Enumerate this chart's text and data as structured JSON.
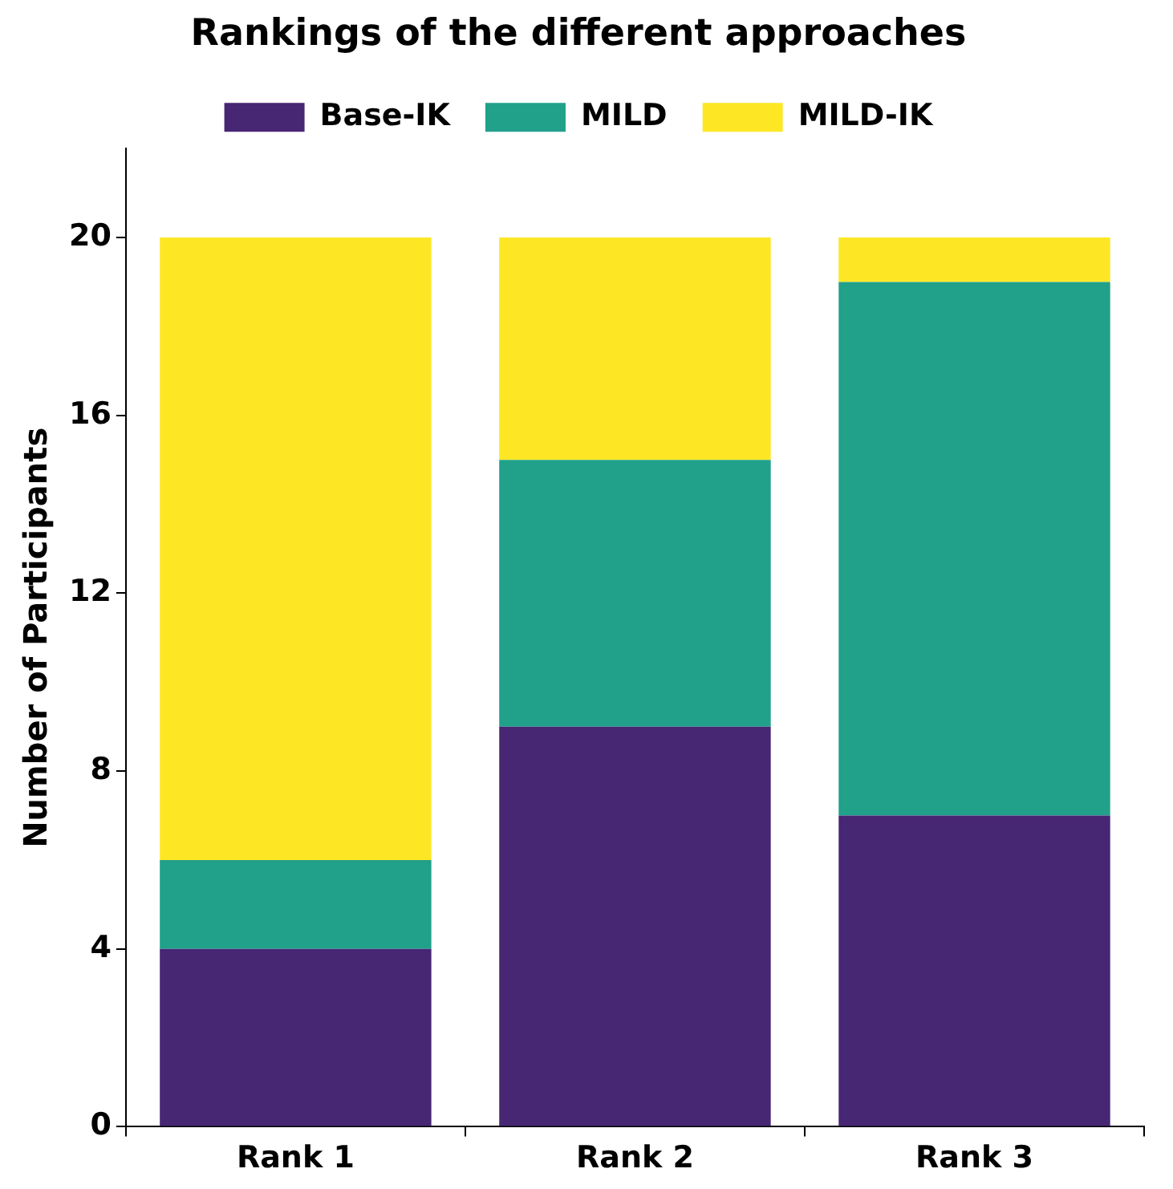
{
  "chart_data": {
    "type": "bar",
    "title": "Rankings of the different approaches",
    "ylabel": "Number of Participants",
    "categories": [
      "Rank 1",
      "Rank 2",
      "Rank 3"
    ],
    "stacked": true,
    "series": [
      {
        "name": "Base-IK",
        "color": "#472674",
        "values": [
          4,
          9,
          7
        ]
      },
      {
        "name": "MILD",
        "color": "#21a08a",
        "values": [
          2,
          6,
          12
        ]
      },
      {
        "name": "MILD-IK",
        "color": "#fde725",
        "values": [
          14,
          5,
          1
        ]
      }
    ],
    "ylim": [
      0,
      22
    ],
    "yticks": [
      0,
      4,
      8,
      12,
      16,
      20
    ],
    "grid": false,
    "legend": "top"
  }
}
